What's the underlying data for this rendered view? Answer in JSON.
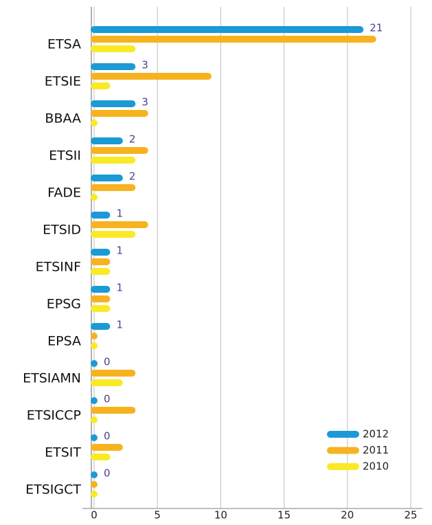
{
  "chart_data": {
    "type": "bar",
    "orientation": "horizontal",
    "categories": [
      "ETSA",
      "ETSIE",
      "BBAA",
      "ETSII",
      "FADE",
      "ETSID",
      "ETSINF",
      "EPSG",
      "EPSA",
      "ETSIAMN",
      "ETSICCP",
      "ETSIT",
      "ETSIGCT"
    ],
    "series": [
      {
        "name": "2012",
        "color": "#1b9ad6",
        "values": [
          21,
          3,
          3,
          2,
          2,
          1,
          1,
          1,
          1,
          0,
          0,
          0,
          0
        ],
        "data_labels": true
      },
      {
        "name": "2011",
        "color": "#f7b21f",
        "values": [
          22,
          9,
          4,
          4,
          3,
          4,
          1,
          1,
          0,
          3,
          3,
          2,
          0
        ]
      },
      {
        "name": "2010",
        "color": "#f9ea25",
        "values": [
          3,
          1,
          0,
          3,
          0,
          3,
          1,
          1,
          0,
          2,
          0,
          1,
          0
        ]
      }
    ],
    "xlim": [
      0,
      25
    ],
    "xticks": [
      0,
      5,
      10,
      15,
      20,
      25
    ],
    "grid": true,
    "legend": "lower right"
  }
}
